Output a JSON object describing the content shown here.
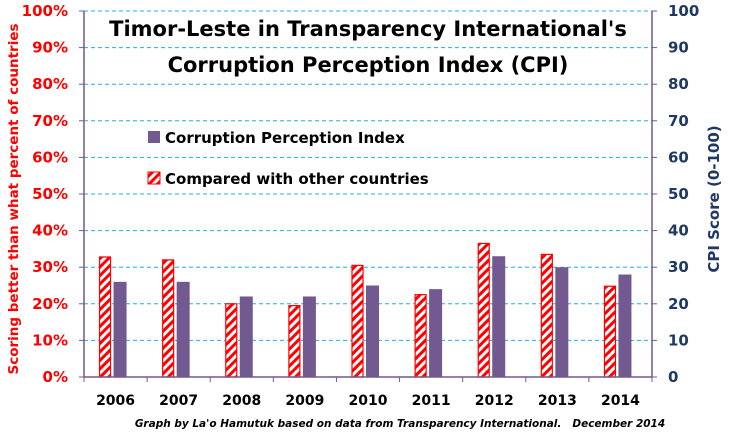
{
  "chart_data": {
    "type": "bar",
    "title": [
      "Timor-Leste in Transparency International's",
      "Corruption Perception Index (CPI)"
    ],
    "categories": [
      "2006",
      "2007",
      "2008",
      "2009",
      "2010",
      "2011",
      "2012",
      "2013",
      "2014"
    ],
    "series": [
      {
        "name": "Compared with other countries",
        "axis": "left",
        "unit": "%",
        "values": [
          32.8,
          32,
          20,
          19.5,
          30.5,
          22.5,
          36.5,
          33.5,
          24.8
        ],
        "color": "#ff0000",
        "pattern": "diagonal-hatch"
      },
      {
        "name": "Corruption Perception Index",
        "axis": "right",
        "values": [
          26,
          26,
          22,
          22,
          25,
          24,
          33,
          30,
          28
        ],
        "color": "#72598f",
        "pattern": "solid"
      }
    ],
    "ylabel_left": "Scoring better than what percent of countries",
    "ylabel_right": "CPI Score (0-100)",
    "ylim_left": [
      0,
      100
    ],
    "ylim_right": [
      0,
      100
    ],
    "yticks_left": [
      "0%",
      "10%",
      "20%",
      "30%",
      "40%",
      "50%",
      "60%",
      "70%",
      "80%",
      "90%",
      "100%"
    ],
    "yticks_right": [
      "0",
      "10",
      "20",
      "30",
      "40",
      "50",
      "60",
      "70",
      "80",
      "90",
      "100"
    ],
    "grid": true,
    "legend": [
      {
        "label": "Corruption Perception Index",
        "swatch": "solid"
      },
      {
        "label": "Compared with other countries",
        "swatch": "hatched"
      }
    ],
    "legend_position": "upper-left",
    "credit": "Graph by La'o Hamutuk based on data from Transparency International.   December 2014"
  },
  "colors": {
    "grid": "#1fb0e0",
    "axis": "#72598f",
    "left_axis_text": "#ff0000",
    "right_axis_text": "#1f3864"
  }
}
